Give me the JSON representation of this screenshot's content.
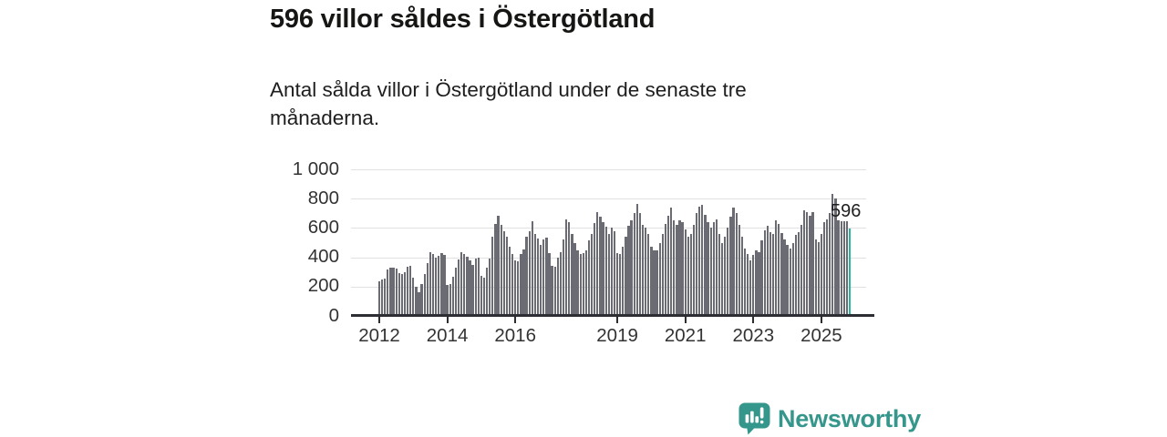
{
  "header": {
    "title": "596 villor såldes i Östergötland",
    "subtitle_line1": "Antal sålda villor i Östergötland under de senaste tre",
    "subtitle_line2": "månaderna."
  },
  "chart_data": {
    "type": "bar",
    "title": "596 villor såldes i Östergötland",
    "xlabel": "",
    "ylabel": "",
    "ylim": [
      0,
      1000
    ],
    "grid": true,
    "x_start": "2012-01",
    "x_end": "2025-11",
    "y_ticks": [
      {
        "label": "0",
        "value": 0
      },
      {
        "label": "200",
        "value": 200
      },
      {
        "label": "400",
        "value": 400
      },
      {
        "label": "600",
        "value": 600
      },
      {
        "label": "800",
        "value": 800
      },
      {
        "label": "1 000",
        "value": 1000
      }
    ],
    "x_ticks": [
      {
        "label": "2012",
        "month_index": 0
      },
      {
        "label": "2014",
        "month_index": 24
      },
      {
        "label": "2016",
        "month_index": 48
      },
      {
        "label": "2019",
        "month_index": 84
      },
      {
        "label": "2021",
        "month_index": 108
      },
      {
        "label": "2023",
        "month_index": 132
      },
      {
        "label": "2025",
        "month_index": 156
      }
    ],
    "values": [
      238,
      246,
      252,
      318,
      330,
      332,
      326,
      292,
      286,
      296,
      336,
      340,
      262,
      198,
      162,
      215,
      285,
      360,
      438,
      425,
      400,
      412,
      428,
      415,
      212,
      220,
      268,
      330,
      388,
      432,
      422,
      402,
      380,
      346,
      390,
      398,
      275,
      262,
      330,
      392,
      540,
      628,
      685,
      622,
      578,
      540,
      475,
      425,
      378,
      372,
      420,
      455,
      540,
      575,
      648,
      560,
      530,
      482,
      525,
      532,
      430,
      345,
      338,
      398,
      435,
      520,
      660,
      640,
      560,
      500,
      450,
      420,
      430,
      450,
      515,
      560,
      633,
      710,
      680,
      640,
      610,
      560,
      600,
      580,
      430,
      425,
      470,
      540,
      615,
      655,
      700,
      765,
      700,
      620,
      600,
      560,
      470,
      447,
      450,
      500,
      560,
      625,
      685,
      740,
      650,
      620,
      655,
      640,
      590,
      540,
      560,
      620,
      700,
      745,
      755,
      690,
      640,
      600,
      640,
      660,
      560,
      500,
      540,
      600,
      680,
      740,
      700,
      620,
      540,
      460,
      420,
      380,
      415,
      450,
      437,
      515,
      585,
      613,
      570,
      560,
      654,
      627,
      565,
      520,
      482,
      462,
      495,
      551,
      571,
      623,
      723,
      706,
      681,
      710,
      520,
      503,
      557,
      640,
      660,
      700,
      830,
      800,
      650,
      645,
      648,
      645,
      596
    ],
    "highlight_last": true,
    "highlight_label": "596",
    "colors": {
      "bar": "#6b6b73",
      "highlight": "#29b5a2",
      "grid": "#e1e1e1",
      "axis": "#2d2d34",
      "tick_text": "#333333"
    }
  },
  "footer": {
    "brand": "Newsworthy",
    "brand_color": "#35968c",
    "logo_icon": "bar-chart-speech-bubble"
  }
}
